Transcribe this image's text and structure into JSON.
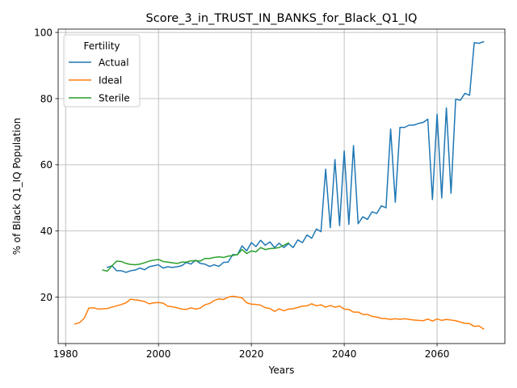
{
  "chart_data": {
    "type": "line",
    "title": "Score_3_in_TRUST_IN_BANKS_for_Black_Q1_IQ",
    "xlabel": "Years",
    "ylabel": "% of Black Q1_IQ Population",
    "xlim": [
      1978.4,
      2074.6
    ],
    "ylim": [
      6,
      101
    ],
    "xticks": [
      1980,
      2000,
      2020,
      2040,
      2060
    ],
    "yticks": [
      20,
      40,
      60,
      80,
      100
    ],
    "grid": true,
    "legend": {
      "title": "Fertility",
      "position": "top-left"
    },
    "series": [
      {
        "name": "Actual",
        "color": "#1f77b4",
        "x": [
          1989,
          1990,
          1991,
          1992,
          1993,
          1994,
          1995,
          1996,
          1997,
          1998,
          1999,
          2000,
          2001,
          2002,
          2003,
          2004,
          2005,
          2006,
          2007,
          2008,
          2009,
          2010,
          2011,
          2012,
          2013,
          2014,
          2015,
          2016,
          2017,
          2018,
          2019,
          2020,
          2021,
          2022,
          2023,
          2024,
          2025,
          2026,
          2027,
          2028,
          2029,
          2030,
          2031,
          2032,
          2033,
          2034,
          2035,
          2036,
          2037,
          2038,
          2039,
          2040,
          2041,
          2042,
          2043,
          2044,
          2045,
          2046,
          2047,
          2048,
          2049,
          2050,
          2051,
          2052,
          2053,
          2054,
          2055,
          2056,
          2057,
          2058,
          2059,
          2060,
          2061,
          2062,
          2063,
          2064,
          2065,
          2066,
          2067,
          2068,
          2069,
          2070
        ],
        "y": [
          29.0,
          29.5,
          28.0,
          28.0,
          27.5,
          28.0,
          28.2,
          28.8,
          28.3,
          29.2,
          29.5,
          29.8,
          28.8,
          29.2,
          29.0,
          29.2,
          29.5,
          30.5,
          30.0,
          31.2,
          30.2,
          30.0,
          29.3,
          29.8,
          29.3,
          30.5,
          30.6,
          32.9,
          32.8,
          35.5,
          34.0,
          36.5,
          35.3,
          37.2,
          35.7,
          36.7,
          35.0,
          36.3,
          35.0,
          36.2,
          35.0,
          37.3,
          36.5,
          38.8,
          37.8,
          40.6,
          39.8,
          58.7,
          41.0,
          61.6,
          41.6,
          64.2,
          42.0,
          65.8,
          42.2,
          44.3,
          43.5,
          45.8,
          45.3,
          47.6,
          47.0,
          70.8,
          48.7,
          71.3,
          71.3,
          72.0,
          72.0,
          72.5,
          72.8,
          73.8,
          49.5,
          75.3,
          50.0,
          77.2,
          51.4,
          79.8,
          79.5,
          81.6,
          81.0,
          96.9,
          96.7,
          97.2
        ]
      },
      {
        "name": "Ideal",
        "color": "#ff7f0e",
        "x": [
          1982,
          1983,
          1984,
          1985,
          1986,
          1987,
          1988,
          1989,
          1990,
          1991,
          1992,
          1993,
          1994,
          1995,
          1996,
          1997,
          1998,
          1999,
          2000,
          2001,
          2002,
          2003,
          2004,
          2005,
          2006,
          2007,
          2008,
          2009,
          2010,
          2011,
          2012,
          2013,
          2014,
          2015,
          2016,
          2017,
          2018,
          2019,
          2020,
          2021,
          2022,
          2023,
          2024,
          2025,
          2026,
          2027,
          2028,
          2029,
          2030,
          2031,
          2032,
          2033,
          2034,
          2035,
          2036,
          2037,
          2038,
          2039,
          2040,
          2041,
          2042,
          2043,
          2044,
          2045,
          2046,
          2047,
          2048,
          2049,
          2050,
          2051,
          2052,
          2053,
          2054,
          2055,
          2056,
          2057,
          2058,
          2059,
          2060,
          2061,
          2062,
          2063,
          2064,
          2065,
          2066,
          2067,
          2068,
          2069,
          2070
        ],
        "y": [
          11.9,
          12.3,
          13.6,
          16.7,
          16.8,
          16.4,
          16.5,
          16.6,
          17.0,
          17.4,
          17.8,
          18.3,
          19.4,
          19.2,
          19.0,
          18.7,
          18.0,
          18.3,
          18.4,
          18.2,
          17.3,
          17.1,
          16.8,
          16.4,
          16.3,
          16.8,
          16.4,
          16.7,
          17.7,
          18.1,
          19.0,
          19.5,
          19.3,
          20.0,
          20.3,
          20.1,
          19.8,
          18.3,
          17.9,
          17.8,
          17.6,
          16.8,
          16.6,
          15.7,
          16.5,
          15.9,
          16.4,
          16.5,
          16.9,
          17.3,
          17.4,
          18.0,
          17.4,
          17.7,
          17.0,
          17.5,
          17.0,
          17.3,
          16.4,
          16.3,
          15.5,
          15.5,
          14.8,
          14.8,
          14.2,
          14.0,
          13.6,
          13.5,
          13.3,
          13.5,
          13.3,
          13.5,
          13.3,
          13.1,
          13.0,
          12.9,
          13.4,
          12.8,
          13.4,
          13.0,
          13.3,
          13.1,
          12.9,
          12.5,
          12.1,
          12.0,
          11.2,
          11.3,
          10.4
        ]
      },
      {
        "name": "Sterile",
        "color": "#2ca02c",
        "x": [
          1988,
          1989,
          1990,
          1991,
          1992,
          1993,
          1994,
          1995,
          1996,
          1997,
          1998,
          1999,
          2000,
          2001,
          2002,
          2003,
          2004,
          2005,
          2006,
          2007,
          2008,
          2009,
          2010,
          2011,
          2012,
          2013,
          2014,
          2015,
          2016,
          2017,
          2018,
          2019,
          2020,
          2021,
          2022,
          2023,
          2024,
          2025,
          2026,
          2027,
          2028
        ],
        "y": [
          28.2,
          27.9,
          29.5,
          30.9,
          30.8,
          30.2,
          29.9,
          29.8,
          30.0,
          30.4,
          30.9,
          31.2,
          31.4,
          30.8,
          30.6,
          30.4,
          30.2,
          30.6,
          30.6,
          31.0,
          31.0,
          30.9,
          31.7,
          31.7,
          32.0,
          32.2,
          32.0,
          32.4,
          32.6,
          32.9,
          34.4,
          33.2,
          34.0,
          33.7,
          35.0,
          34.4,
          34.7,
          34.8,
          35.0,
          35.7,
          36.4
        ]
      }
    ]
  }
}
